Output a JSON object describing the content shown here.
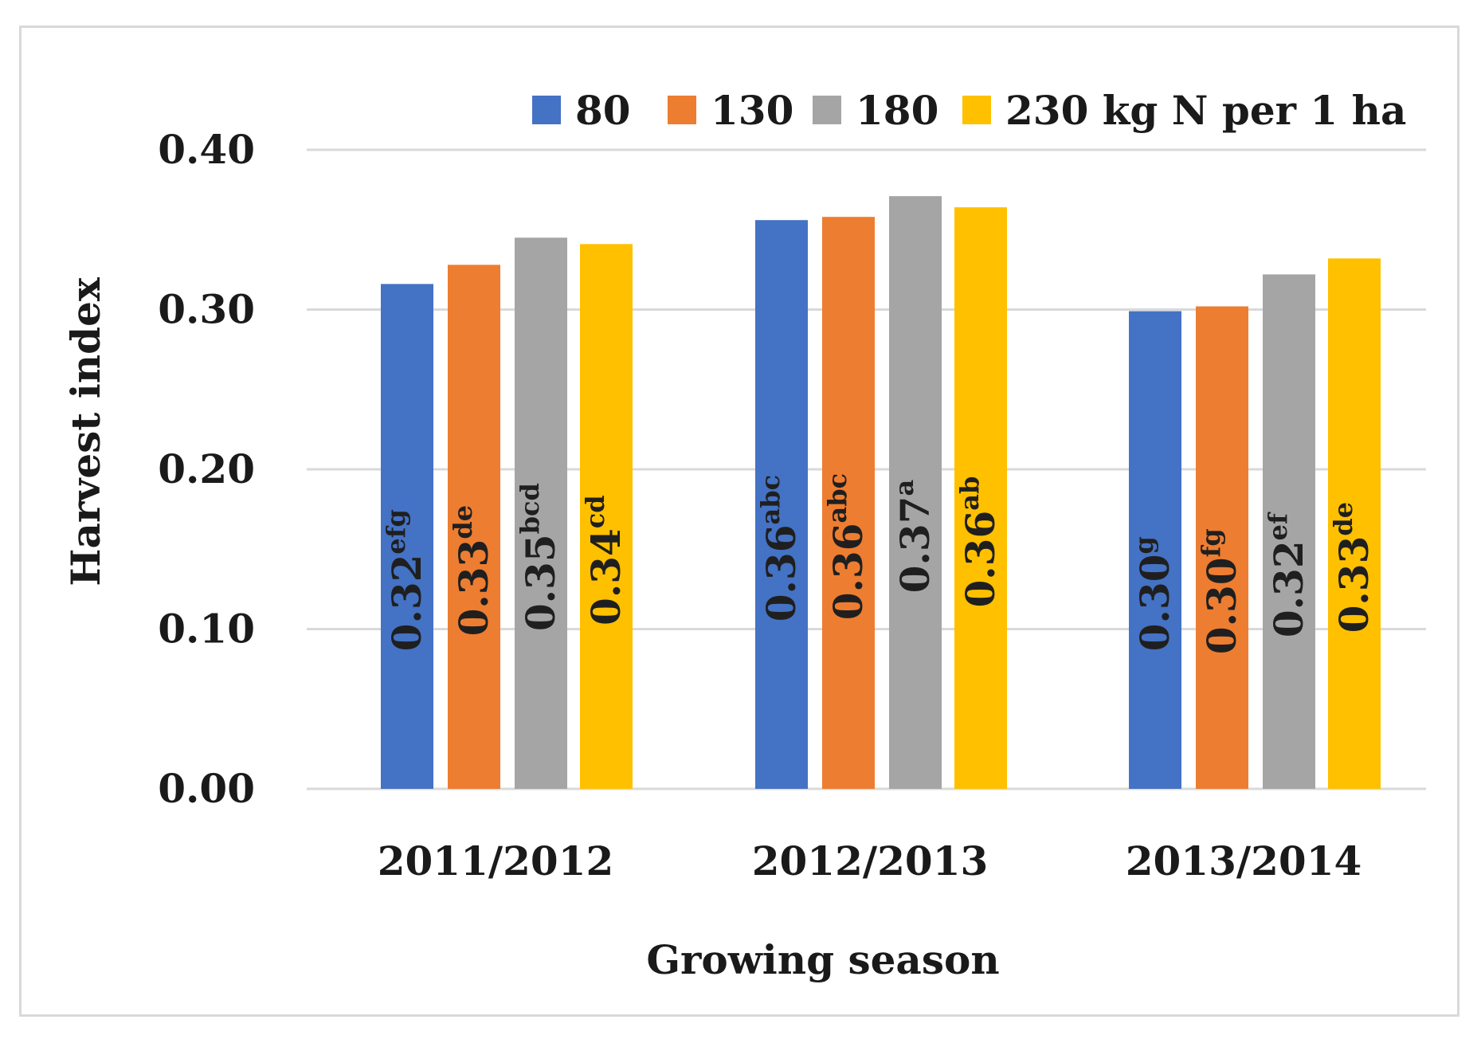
{
  "chart_data": {
    "type": "bar",
    "title": "",
    "xlabel": "Growing season",
    "ylabel": "Harvest index",
    "ylim": [
      0,
      0.4
    ],
    "yticks": [
      "0.00",
      "0.10",
      "0.20",
      "0.30",
      "0.40"
    ],
    "grid": true,
    "legend_position": "top-right",
    "categories": [
      "2011/2012",
      "2012/2013",
      "2013/2014"
    ],
    "series": [
      {
        "name": "80",
        "color": "#4472c4",
        "values": [
          0.316,
          0.356,
          0.299
        ],
        "labels": [
          {
            "value": "0.32",
            "sup": "efg"
          },
          {
            "value": "0.36",
            "sup": "abc"
          },
          {
            "value": "0.30",
            "sup": "g"
          }
        ]
      },
      {
        "name": "130",
        "color": "#ed7d31",
        "values": [
          0.328,
          0.358,
          0.302
        ],
        "labels": [
          {
            "value": "0.33",
            "sup": "de"
          },
          {
            "value": "0.36",
            "sup": "abc"
          },
          {
            "value": "0.30",
            "sup": "fg"
          }
        ]
      },
      {
        "name": "180",
        "color": "#a5a5a5",
        "values": [
          0.345,
          0.371,
          0.322
        ],
        "labels": [
          {
            "value": "0.35",
            "sup": "bcd"
          },
          {
            "value": "0.37",
            "sup": "a"
          },
          {
            "value": "0.32",
            "sup": "ef"
          }
        ]
      },
      {
        "name": "230 kg N per 1 ha",
        "color": "#ffc000",
        "values": [
          0.341,
          0.364,
          0.332
        ],
        "labels": [
          {
            "value": "0.34",
            "sup": "cd"
          },
          {
            "value": "0.36",
            "sup": "ab"
          },
          {
            "value": "0.33",
            "sup": "de"
          }
        ]
      }
    ]
  }
}
